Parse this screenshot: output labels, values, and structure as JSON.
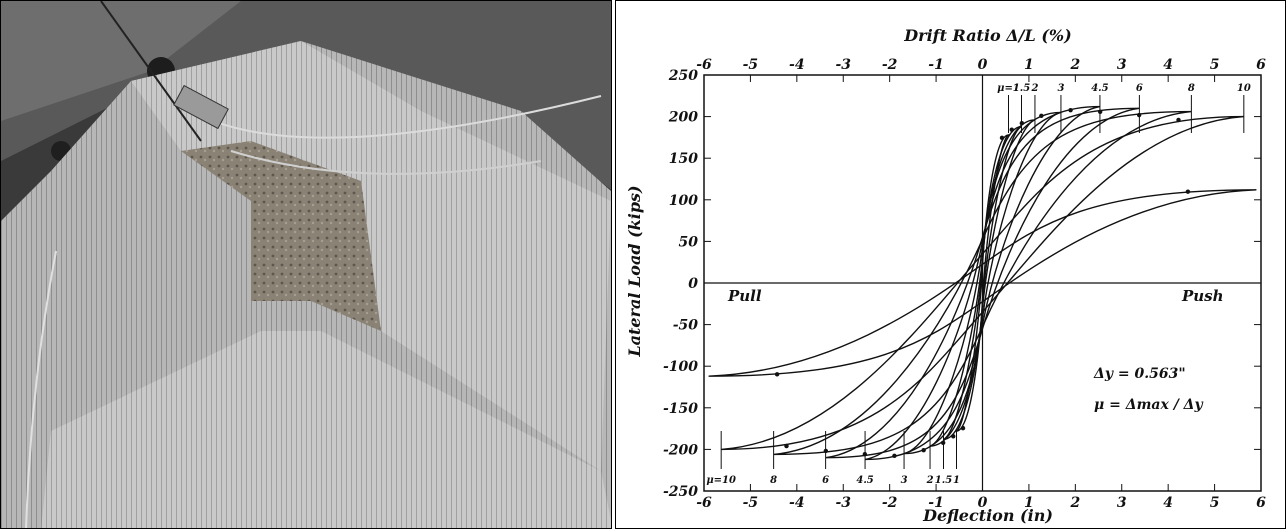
{
  "photo": {
    "alt": "Retrofitted column specimen with damaged jacket after cyclic testing"
  },
  "chart_data": {
    "type": "line",
    "title": "",
    "xlabel": "Deflection (in)",
    "x2label": "Drift Ratio Δ/L (%)",
    "ylabel": "Lateral Load (kips)",
    "xlim": [
      -6,
      6
    ],
    "ylim": [
      -250,
      250
    ],
    "x_ticks": [
      -6,
      -5,
      -4,
      -3,
      -2,
      -1,
      0,
      1,
      2,
      3,
      4,
      5,
      6
    ],
    "x2_ticks": [
      -6,
      -5,
      -4,
      -3,
      -2,
      -1,
      0,
      1,
      2,
      3,
      4,
      5,
      6
    ],
    "y_ticks": [
      -250,
      -200,
      -150,
      -100,
      -50,
      0,
      50,
      100,
      150,
      200,
      250
    ],
    "grid": false,
    "color": "#111111",
    "push_label": "Push",
    "pull_label": "Pull",
    "delta_y_label": "Δy = 0.563\"",
    "mu_label": "μ = Δmax / Δy",
    "ductility_top": [
      {
        "label": "μ=1",
        "x": 0.56
      },
      {
        "label": "1.5",
        "x": 0.84
      },
      {
        "label": "2",
        "x": 1.13
      },
      {
        "label": "3",
        "x": 1.69
      },
      {
        "label": "4.5",
        "x": 2.53
      },
      {
        "label": "6",
        "x": 3.38
      },
      {
        "label": "8",
        "x": 4.5
      },
      {
        "label": "10",
        "x": 5.63
      }
    ],
    "ductility_bottom": [
      {
        "label": "μ=10",
        "x": -5.63
      },
      {
        "label": "8",
        "x": -4.5
      },
      {
        "label": "6",
        "x": -3.38
      },
      {
        "label": "4.5",
        "x": -2.53
      },
      {
        "label": "3",
        "x": -1.69
      },
      {
        "label": "2",
        "x": -1.13
      },
      {
        "label": "1.5",
        "x": -0.84
      },
      {
        "label": "1",
        "x": -0.56
      }
    ],
    "series": [
      {
        "peak_x": 0.56,
        "peak_y": 178,
        "zero_x": 0.1,
        "y_intercept": 38
      },
      {
        "peak_x": 0.84,
        "peak_y": 188,
        "zero_x": 0.2,
        "y_intercept": 50
      },
      {
        "peak_x": 1.13,
        "peak_y": 196,
        "zero_x": 0.35,
        "y_intercept": 62
      },
      {
        "peak_x": 1.69,
        "peak_y": 205,
        "zero_x": 0.7,
        "y_intercept": 85
      },
      {
        "peak_x": 2.53,
        "peak_y": 212,
        "zero_x": 1.3,
        "y_intercept": 100
      },
      {
        "peak_x": 3.38,
        "peak_y": 210,
        "zero_x": 2.1,
        "y_intercept": 110
      },
      {
        "peak_x": 4.5,
        "peak_y": 206,
        "zero_x": 3.1,
        "y_intercept": 105
      },
      {
        "peak_x": 5.63,
        "peak_y": 200,
        "zero_x": 4.1,
        "y_intercept": 70
      },
      {
        "peak_x": 5.9,
        "peak_y": 112,
        "zero_x": 4.2,
        "y_intercept": 45
      }
    ]
  }
}
